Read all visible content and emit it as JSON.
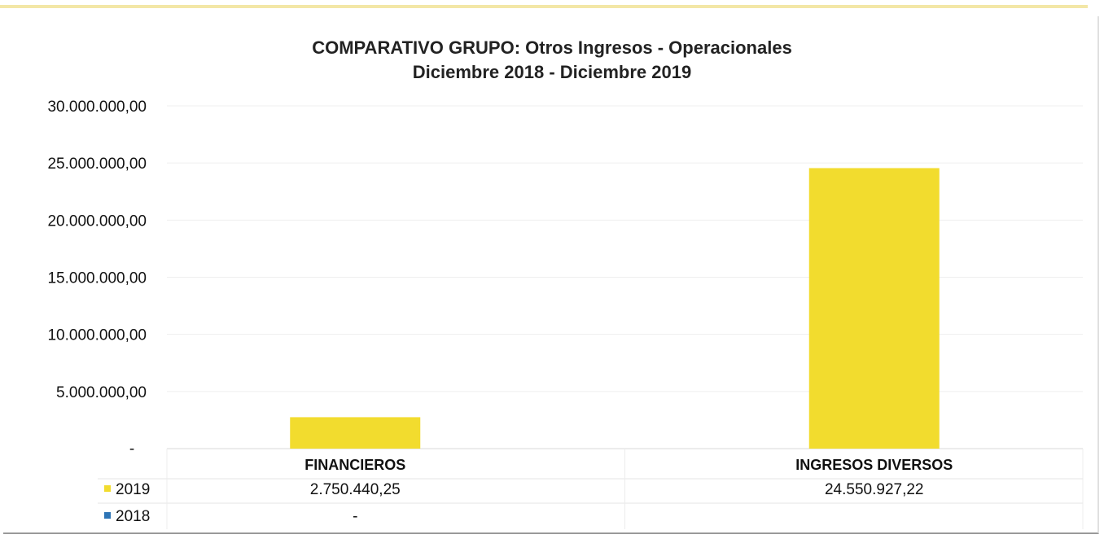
{
  "chart_data": {
    "type": "bar",
    "title": "COMPARATIVO GRUPO: Otros Ingresos - Operacionales",
    "subtitle": "Diciembre 2018 - Diciembre 2019",
    "categories": [
      "FINANCIEROS",
      "INGRESOS DIVERSOS"
    ],
    "series": [
      {
        "name": "2019",
        "color": "#f2dc2e",
        "values": [
          2750440.25,
          24550927.22
        ],
        "labels": [
          "2.750.440,25",
          "24.550.927,22"
        ]
      },
      {
        "name": "2018",
        "color": "#2e75b6",
        "values": [
          0,
          0
        ],
        "labels": [
          "-",
          ""
        ]
      }
    ],
    "ylim": [
      0,
      30000000
    ],
    "yticks": [
      0,
      5000000,
      10000000,
      15000000,
      20000000,
      25000000,
      30000000
    ],
    "ytick_labels": [
      "-",
      "5.000.000,00",
      "10.000.000,00",
      "15.000.000,00",
      "20.000.000,00",
      "25.000.000,00",
      "30.000.000,00"
    ],
    "grid": true,
    "legend": "data-table-left"
  }
}
